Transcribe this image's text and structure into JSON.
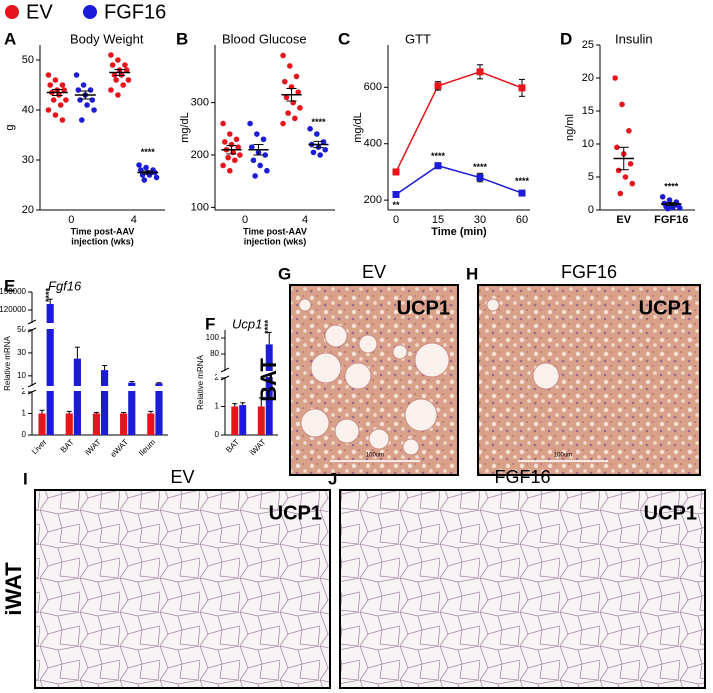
{
  "chart_data": [
    {
      "type": "dot",
      "panel": "A",
      "title": "Body  Weight",
      "ylabel": "g",
      "xlabel": [
        "Time post-AAV",
        "injection (wks)"
      ],
      "categories": [
        "0",
        "4"
      ],
      "ylim": [
        20,
        53
      ],
      "yticks": [
        20,
        30,
        40,
        50
      ],
      "series": [
        {
          "name": "EV",
          "color": "#e8141b",
          "values": [
            [
              47,
              46,
              45,
              45,
              44,
              44,
              43.5,
              43,
              42,
              42,
              41,
              40,
              39,
              38
            ],
            [
              51,
              50,
              49,
              49,
              48,
              48,
              47,
              47,
              46,
              46,
              45,
              44,
              43
            ]
          ],
          "mean": [
            43.5,
            47.5
          ],
          "sem": [
            0.6,
            0.6
          ]
        },
        {
          "name": "FGF16",
          "color": "#1b1bd8",
          "values": [
            [
              47,
              45,
              44,
              44,
              43,
              42,
              42,
              41,
              40,
              38
            ],
            [
              29,
              28.5,
              28,
              28,
              27.5,
              27.5,
              27,
              27,
              26.5,
              26
            ]
          ],
          "mean": [
            43,
            27.5
          ],
          "sem": [
            0.8,
            0.3
          ]
        }
      ],
      "annotations": [
        {
          "text": "****",
          "x": "4",
          "y": 31.5
        }
      ]
    },
    {
      "type": "dot",
      "panel": "B",
      "title": "Blood Glucose",
      "ylabel": "mg/dL",
      "xlabel": [
        "Time post-AAV",
        "injection (wks)"
      ],
      "categories": [
        "0",
        "4"
      ],
      "ylim": [
        95,
        410
      ],
      "yticks": [
        100,
        200,
        300
      ],
      "series": [
        {
          "color": "#e8141b",
          "values": [
            [
              260,
              240,
              230,
              225,
              220,
              215,
              210,
              205,
              200,
              195,
              190,
              180,
              170
            ],
            [
              390,
              370,
              350,
              340,
              330,
              320,
              310,
              300,
              290,
              280,
              270,
              260
            ]
          ],
          "mean": [
            210,
            315
          ],
          "sem": [
            8,
            12
          ]
        },
        {
          "color": "#1b1bd8",
          "values": [
            [
              260,
              240,
              230,
              215,
              205,
              200,
              190,
              180,
              170,
              160
            ],
            [
              250,
              240,
              225,
              220,
              215,
              210,
              205,
              200
            ]
          ],
          "mean": [
            210,
            220
          ],
          "sem": [
            10,
            6
          ]
        }
      ],
      "annotations": [
        {
          "text": "****",
          "x": "4",
          "y": 262
        }
      ]
    },
    {
      "type": "line",
      "panel": "C",
      "title": "GTT",
      "ylabel": "mg/dL",
      "xlabel": [
        "Time (min)"
      ],
      "categories": [
        "0",
        "15",
        "30",
        "60"
      ],
      "ylim": [
        165,
        750
      ],
      "yticks": [
        200,
        400,
        600
      ],
      "series": [
        {
          "color": "#e8141b",
          "values": [
            300,
            605,
            655,
            598
          ],
          "errors": [
            10,
            15,
            25,
            30
          ]
        },
        {
          "color": "#1b1bd8",
          "values": [
            220,
            322,
            280,
            225
          ],
          "errors": [
            8,
            10,
            15,
            8
          ]
        }
      ],
      "annotations": [
        {
          "text": "**",
          "x": "0",
          "y": 180
        },
        {
          "text": "****",
          "x": "15",
          "y": 355
        },
        {
          "text": "****",
          "x": "30",
          "y": 315
        },
        {
          "text": "****",
          "x": "60",
          "y": 265
        }
      ]
    },
    {
      "type": "dot",
      "panel": "D",
      "title": "Insulin",
      "ylabel": "ng/ml",
      "categories": [
        "EV",
        "FGF16"
      ],
      "ylim": [
        0,
        25
      ],
      "yticks": [
        0,
        5,
        10,
        15,
        20,
        25
      ],
      "colors": [
        "#e8141b",
        "#1b1bd8"
      ],
      "values": [
        [
          20,
          16,
          12,
          9.5,
          8.5,
          7,
          6,
          5,
          4,
          2.5
        ],
        [
          2,
          1.5,
          1.2,
          1,
          0.8,
          0.7,
          0.5,
          0.4,
          0.3,
          0.2
        ]
      ],
      "mean": [
        7.8,
        0.9
      ],
      "sem": [
        1.7,
        0.2
      ],
      "annotations": [
        {
          "text": "****",
          "x": "FGF16",
          "y": 3.5
        }
      ]
    },
    {
      "type": "broken_bar",
      "panel": "E",
      "title": "Fgf16",
      "ylabel": "Relative mRNA",
      "categories": [
        "Liver",
        "BAT",
        "iWAT",
        "eWAT",
        "Ileum"
      ],
      "segments": [
        {
          "ylim": [
            0,
            2
          ],
          "yticks": [
            0,
            1,
            2
          ]
        },
        {
          "ylim": [
            2,
            50
          ],
          "yticks": [
            10,
            30,
            50
          ]
        },
        {
          "ylim": [
            100000,
            150000
          ],
          "yticks": [
            120000,
            150000
          ]
        }
      ],
      "series": [
        {
          "color": "#e8141b",
          "values": [
            1,
            1,
            1,
            1,
            1
          ],
          "errors": [
            0.15,
            0.1,
            0.05,
            0.05,
            0.1
          ]
        },
        {
          "color": "#1b1bd8",
          "values": [
            130000,
            25,
            15,
            4,
            3.5
          ],
          "errors": [
            8000,
            10,
            4,
            1,
            0.5
          ]
        }
      ],
      "annotations": [
        {
          "text": "****",
          "x": "Liver",
          "y": 145000
        }
      ]
    },
    {
      "type": "broken_bar",
      "panel": "F",
      "title": "Ucp1",
      "ylabel": "Relative mRNA",
      "categories": [
        "BAT",
        "iWAT"
      ],
      "segments": [
        {
          "ylim": [
            0,
            2
          ],
          "yticks": [
            0,
            1,
            2
          ]
        },
        {
          "ylim": [
            60,
            110
          ],
          "yticks": [
            80,
            100
          ]
        }
      ],
      "series": [
        {
          "color": "#e8141b",
          "values": [
            1,
            1
          ],
          "errors": [
            0.1,
            0.3
          ]
        },
        {
          "color": "#1b1bd8",
          "values": [
            1.05,
            92
          ],
          "errors": [
            0.08,
            15
          ]
        }
      ],
      "annotations": [
        {
          "text": "****",
          "x": "iWAT",
          "y": 114
        }
      ]
    }
  ],
  "images": [
    {
      "panel": "G",
      "title": "EV",
      "stain": "UCP1",
      "scale": "100um"
    },
    {
      "panel": "H",
      "title": "FGF16",
      "stain": "UCP1",
      "scale": "100um"
    },
    {
      "panel": "I",
      "title": "EV",
      "stain": "UCP1"
    },
    {
      "panel": "J",
      "title": "FGF16",
      "stain": "UCP1"
    }
  ],
  "row_labels": [
    "BAT",
    "iWAT"
  ]
}
